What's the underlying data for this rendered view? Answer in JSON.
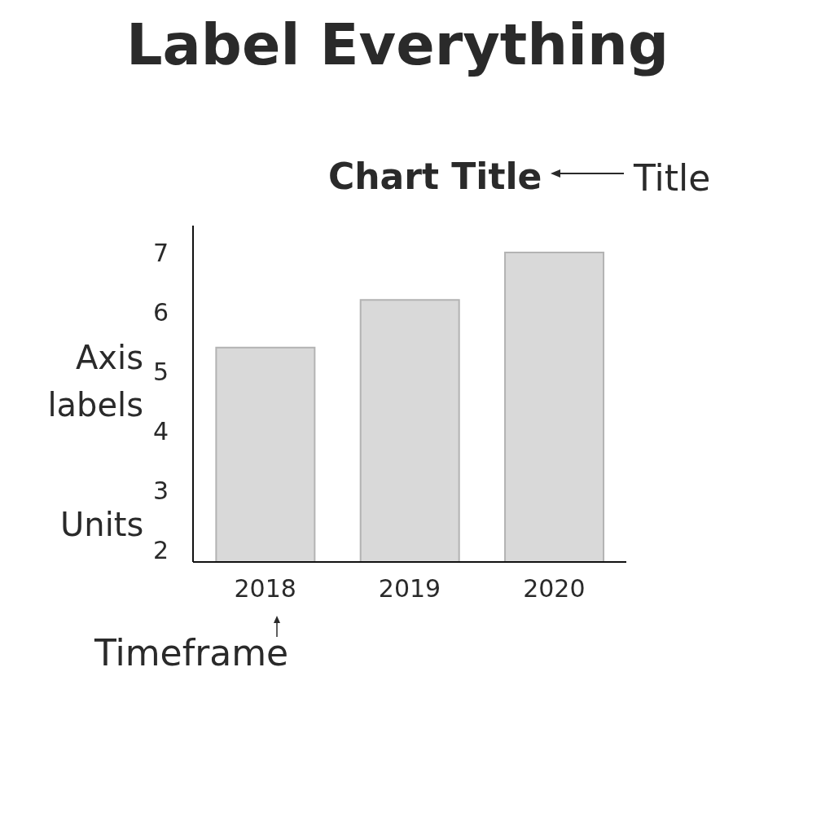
{
  "chart_data": {
    "type": "bar",
    "title": "Label Everything",
    "subtitle": "Chart Title",
    "xlabel": "Timeframe",
    "ylabel": "Units",
    "annotations": [
      "Title",
      "Axis labels"
    ],
    "categories": [
      "2018",
      "2019",
      "2020"
    ],
    "values": [
      5.4,
      6.2,
      7.0
    ],
    "color": "#d9d9d9",
    "ylim": [
      1.8,
      7.45
    ],
    "yticks": [
      2,
      3,
      4,
      5,
      6,
      7
    ]
  }
}
